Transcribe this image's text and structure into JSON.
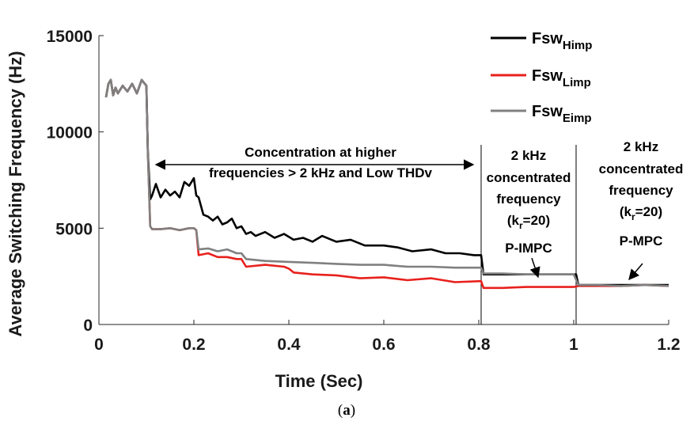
{
  "chart_data": {
    "type": "line",
    "xlabel": "Time (Sec)",
    "ylabel": "Average Switching Frequency (Hz)",
    "xlim": [
      0,
      1.2
    ],
    "ylim": [
      0,
      15000
    ],
    "x_ticks": [
      "0",
      "0.2",
      "0.4",
      "0.6",
      "0.8",
      "1",
      "1.2"
    ],
    "y_ticks": [
      "0",
      "5000",
      "10000",
      "15000"
    ],
    "grid": false,
    "legend": "top-right",
    "series": [
      {
        "name_main": "Fsw",
        "name_sub": "Himp",
        "color": "#000000",
        "x": [
          0.015,
          0.02,
          0.025,
          0.03,
          0.035,
          0.04,
          0.05,
          0.06,
          0.07,
          0.08,
          0.09,
          0.1,
          0.103,
          0.108,
          0.112,
          0.12,
          0.13,
          0.14,
          0.15,
          0.16,
          0.17,
          0.18,
          0.19,
          0.2,
          0.205,
          0.21,
          0.22,
          0.23,
          0.24,
          0.25,
          0.26,
          0.27,
          0.28,
          0.29,
          0.3,
          0.31,
          0.32,
          0.33,
          0.35,
          0.37,
          0.39,
          0.41,
          0.43,
          0.45,
          0.47,
          0.5,
          0.53,
          0.56,
          0.6,
          0.63,
          0.66,
          0.7,
          0.73,
          0.76,
          0.79,
          0.805,
          0.81,
          0.85,
          0.9,
          0.95,
          1.0,
          1.005,
          1.01,
          1.05,
          1.1,
          1.15,
          1.2
        ],
        "y": [
          11800,
          12500,
          12700,
          11900,
          12300,
          12000,
          12400,
          12100,
          12500,
          12000,
          12700,
          12400,
          9000,
          6500,
          6700,
          7300,
          6600,
          7000,
          6700,
          6900,
          6600,
          7400,
          7200,
          7600,
          6700,
          6600,
          5700,
          5600,
          5400,
          5600,
          5200,
          5300,
          5500,
          5000,
          5100,
          4700,
          4800,
          4600,
          4800,
          4500,
          4700,
          4400,
          4500,
          4300,
          4600,
          4300,
          4400,
          4100,
          4100,
          4000,
          3800,
          3900,
          3700,
          3700,
          3600,
          3600,
          2600,
          2600,
          2600,
          2600,
          2600,
          2600,
          2050,
          2050,
          2050,
          2050,
          2050
        ]
      },
      {
        "name_main": "Fsw",
        "name_sub": "Limp",
        "color": "#e8201c",
        "x": [
          0.015,
          0.02,
          0.025,
          0.03,
          0.035,
          0.04,
          0.05,
          0.06,
          0.07,
          0.08,
          0.09,
          0.1,
          0.103,
          0.108,
          0.112,
          0.13,
          0.15,
          0.17,
          0.19,
          0.2,
          0.205,
          0.21,
          0.23,
          0.25,
          0.27,
          0.29,
          0.3,
          0.31,
          0.35,
          0.39,
          0.4,
          0.41,
          0.45,
          0.5,
          0.55,
          0.6,
          0.65,
          0.7,
          0.75,
          0.8,
          0.805,
          0.81,
          0.85,
          0.9,
          0.95,
          1.0,
          1.01,
          1.05,
          1.1,
          1.15,
          1.2
        ],
        "y": [
          11800,
          12500,
          12700,
          11900,
          12300,
          12000,
          12400,
          12100,
          12500,
          12000,
          12700,
          12400,
          9000,
          5100,
          4950,
          4950,
          5000,
          4900,
          5000,
          5000,
          4900,
          3600,
          3700,
          3500,
          3500,
          3400,
          3400,
          3000,
          3100,
          3000,
          2900,
          2700,
          2600,
          2550,
          2400,
          2450,
          2300,
          2400,
          2200,
          2250,
          2250,
          1900,
          1900,
          1950,
          1950,
          1950,
          2000,
          2000,
          2000,
          2050,
          2000
        ]
      },
      {
        "name_main": "Fsw",
        "name_sub": "Eimp",
        "color": "#808080",
        "x": [
          0.015,
          0.02,
          0.025,
          0.03,
          0.035,
          0.04,
          0.05,
          0.06,
          0.07,
          0.08,
          0.09,
          0.1,
          0.103,
          0.108,
          0.112,
          0.13,
          0.15,
          0.17,
          0.19,
          0.2,
          0.205,
          0.21,
          0.23,
          0.25,
          0.27,
          0.29,
          0.3,
          0.31,
          0.35,
          0.4,
          0.45,
          0.5,
          0.55,
          0.6,
          0.65,
          0.7,
          0.75,
          0.8,
          0.805,
          0.81,
          0.85,
          0.9,
          0.95,
          1.0,
          1.01,
          1.05,
          1.1,
          1.15,
          1.2
        ],
        "y": [
          11800,
          12500,
          12700,
          11900,
          12300,
          12000,
          12400,
          12100,
          12500,
          12000,
          12700,
          12400,
          9000,
          5100,
          4950,
          4950,
          5000,
          4900,
          5000,
          5000,
          4900,
          3900,
          3950,
          3800,
          3900,
          3700,
          3700,
          3400,
          3300,
          3250,
          3200,
          3150,
          3100,
          3100,
          3000,
          3000,
          2950,
          2950,
          2950,
          2650,
          2650,
          2600,
          2600,
          2600,
          2050,
          2050,
          2000,
          2050,
          2000
        ]
      }
    ],
    "vlines_x": [
      0.805,
      1.005
    ],
    "annotations": {
      "range_text_line1": "Concentration at higher",
      "range_text_line2": "frequencies > 2 kHz and Low THDv",
      "mid_line1": "2 kHz",
      "mid_line2": "concentrated",
      "mid_line3": "frequency",
      "mid_kr_main": "(k",
      "mid_kr_sub": "r",
      "mid_kr_tail": "=20)",
      "mid_method": "P-IMPC",
      "right_line1": "2 kHz",
      "right_line2": "concentrated",
      "right_line3": "frequency",
      "right_kr_main": "(k",
      "right_kr_sub": "r",
      "right_kr_tail": "=20)",
      "right_method": "P-MPC"
    },
    "caption_open": "(",
    "caption_letter": "a",
    "caption_close": ")"
  }
}
